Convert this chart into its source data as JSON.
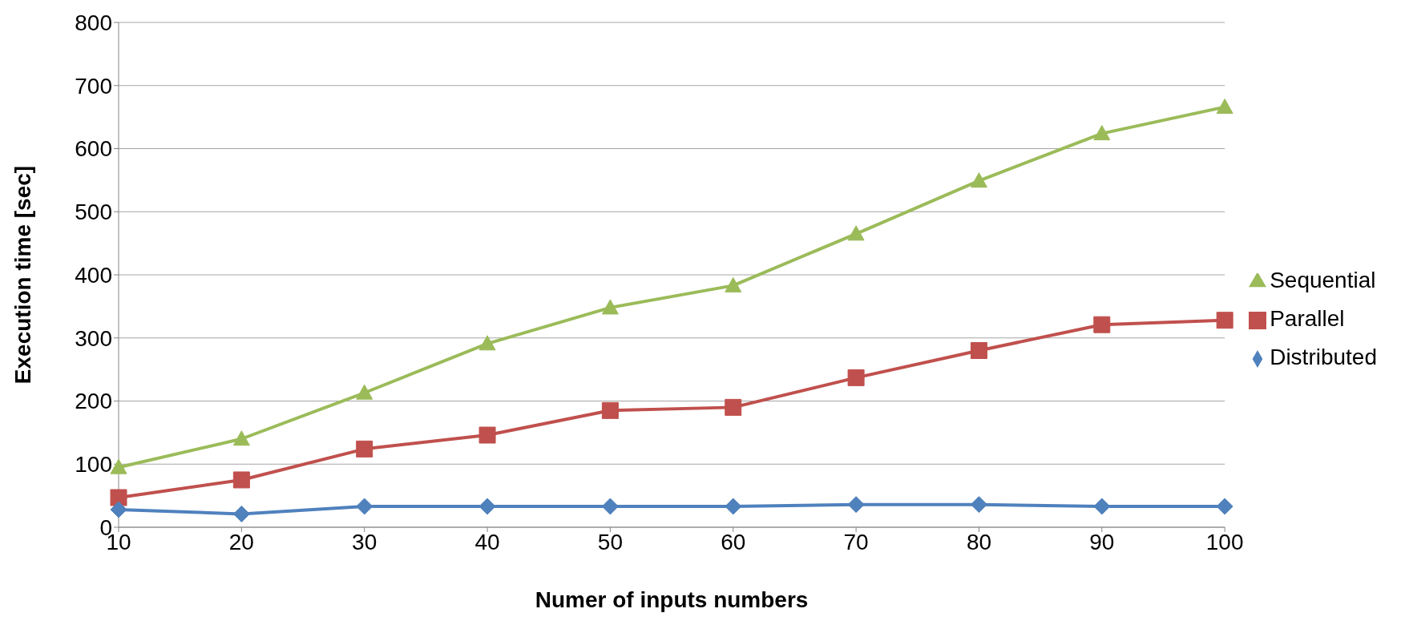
{
  "chart_data": {
    "type": "line",
    "xlabel": "Numer of inputs numbers",
    "ylabel": "Execution time [sec]",
    "categories": [
      "10",
      "20",
      "30",
      "40",
      "50",
      "60",
      "70",
      "80",
      "90",
      "100"
    ],
    "series": [
      {
        "name": "Sequential",
        "color": "#9bbb59",
        "marker": "triangle",
        "values": [
          95,
          140,
          213,
          291,
          348,
          383,
          465,
          549,
          624,
          666
        ]
      },
      {
        "name": "Parallel",
        "color": "#c0504d",
        "marker": "square",
        "values": [
          47,
          75,
          124,
          146,
          185,
          190,
          237,
          280,
          321,
          328
        ]
      },
      {
        "name": "Distributed",
        "color": "#4f81bd",
        "marker": "diamond",
        "values": [
          28,
          21,
          33,
          33,
          33,
          33,
          36,
          36,
          33,
          33
        ]
      }
    ],
    "ylim": [
      0,
      800
    ],
    "yticks": [
      0,
      100,
      200,
      300,
      400,
      500,
      600,
      700,
      800
    ],
    "grid": "y",
    "legend": "right",
    "line_style": "solid"
  }
}
